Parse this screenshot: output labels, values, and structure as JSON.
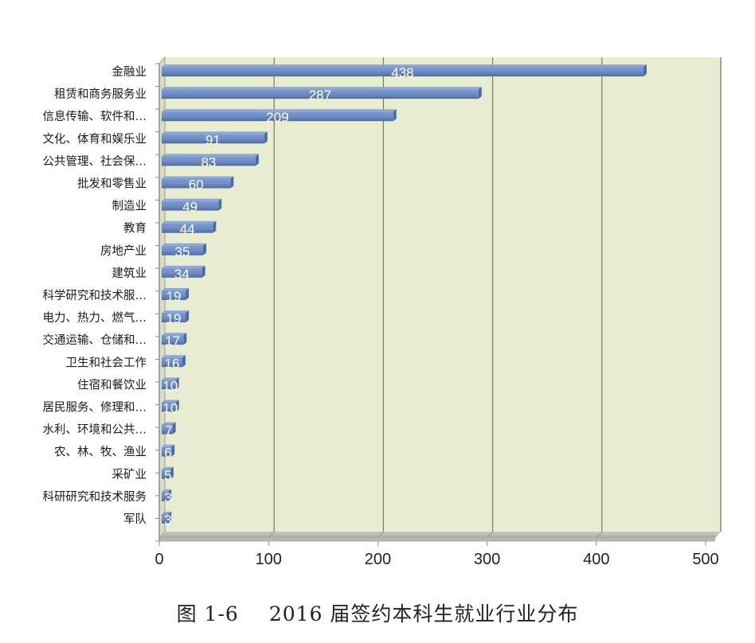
{
  "chart_data": {
    "type": "bar",
    "orientation": "horizontal",
    "style": "3d-clustered-bar",
    "title": "图 1-6    2016 届签约本科生就业行业分布",
    "figure_number": "图 1-6",
    "caption_text": "2016 届签约本科生就业行业分布",
    "xlabel": "",
    "ylabel": "",
    "xlim": [
      0,
      500
    ],
    "x_ticks": [
      0,
      100,
      200,
      300,
      400,
      500
    ],
    "grid": true,
    "legend": null,
    "data_labels": true,
    "categories": [
      "金融业",
      "租赁和商务服务业",
      "信息传输、软件和…",
      "文化、体育和娱乐业",
      "公共管理、社会保…",
      "批发和零售业",
      "制造业",
      "教育",
      "房地产业",
      "建筑业",
      "科学研究和技术服…",
      "电力、热力、燃气…",
      "交通运输、仓储和…",
      "卫生和社会工作",
      "住宿和餐饮业",
      "居民服务、修理和…",
      "水利、环境和公共…",
      "农、林、牧、渔业",
      "采矿业",
      "科研研究和技术服务",
      "军队"
    ],
    "values": [
      438,
      287,
      209,
      91,
      83,
      60,
      49,
      44,
      35,
      34,
      19,
      19,
      17,
      16,
      10,
      10,
      7,
      6,
      5,
      3,
      3
    ],
    "colors": {
      "bar": "#6d8bc3",
      "bar_dark": "#4e6aa3",
      "plot_background": "#e8edd2",
      "gridline": "#7a7a6a",
      "floor": "#b9bdb0"
    }
  },
  "caption": {
    "figure_number": "图 1-6",
    "text": "2016 届签约本科生就业行业分布"
  }
}
